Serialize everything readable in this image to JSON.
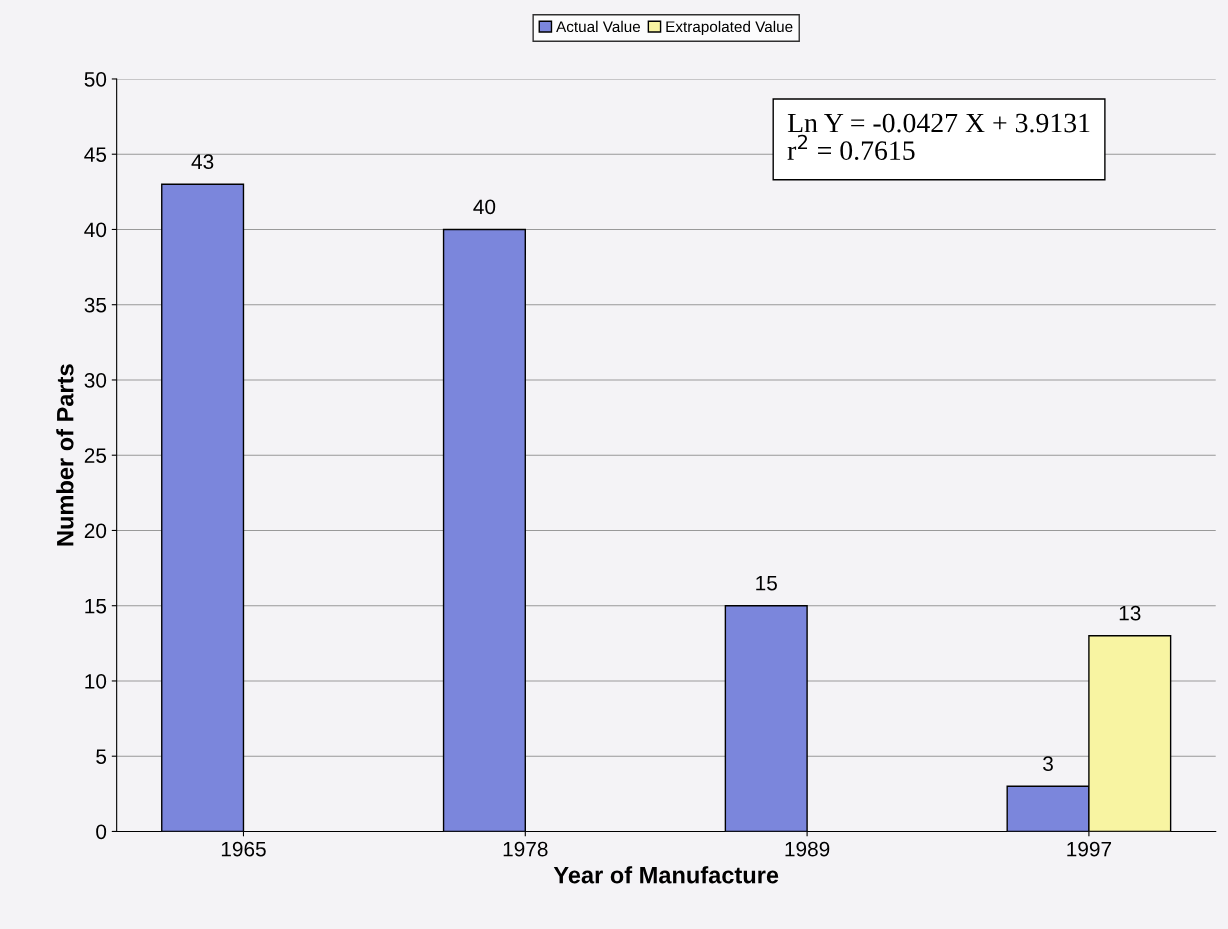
{
  "chart_data": {
    "type": "bar",
    "xlabel": "Year of Manufacture",
    "ylabel": "Number of Parts",
    "categories": [
      "1965",
      "1978",
      "1989",
      "1997"
    ],
    "series": [
      {
        "name": "Actual Value",
        "color": "#7b86dc",
        "values": [
          43,
          40,
          15,
          3
        ]
      },
      {
        "name": "Extrapolated Value",
        "color": "#f8f4a2",
        "values": [
          null,
          null,
          null,
          13
        ]
      }
    ],
    "ylim": [
      0,
      50
    ],
    "yticks": [
      0,
      5,
      10,
      15,
      20,
      25,
      30,
      35,
      40,
      45,
      50
    ],
    "grid": "y",
    "legend": "top",
    "data_labels": true,
    "annotations": [
      "Ln Y = -0.0427 X + 3.9131\nr$^{2}$ = 0.7615"
    ]
  }
}
